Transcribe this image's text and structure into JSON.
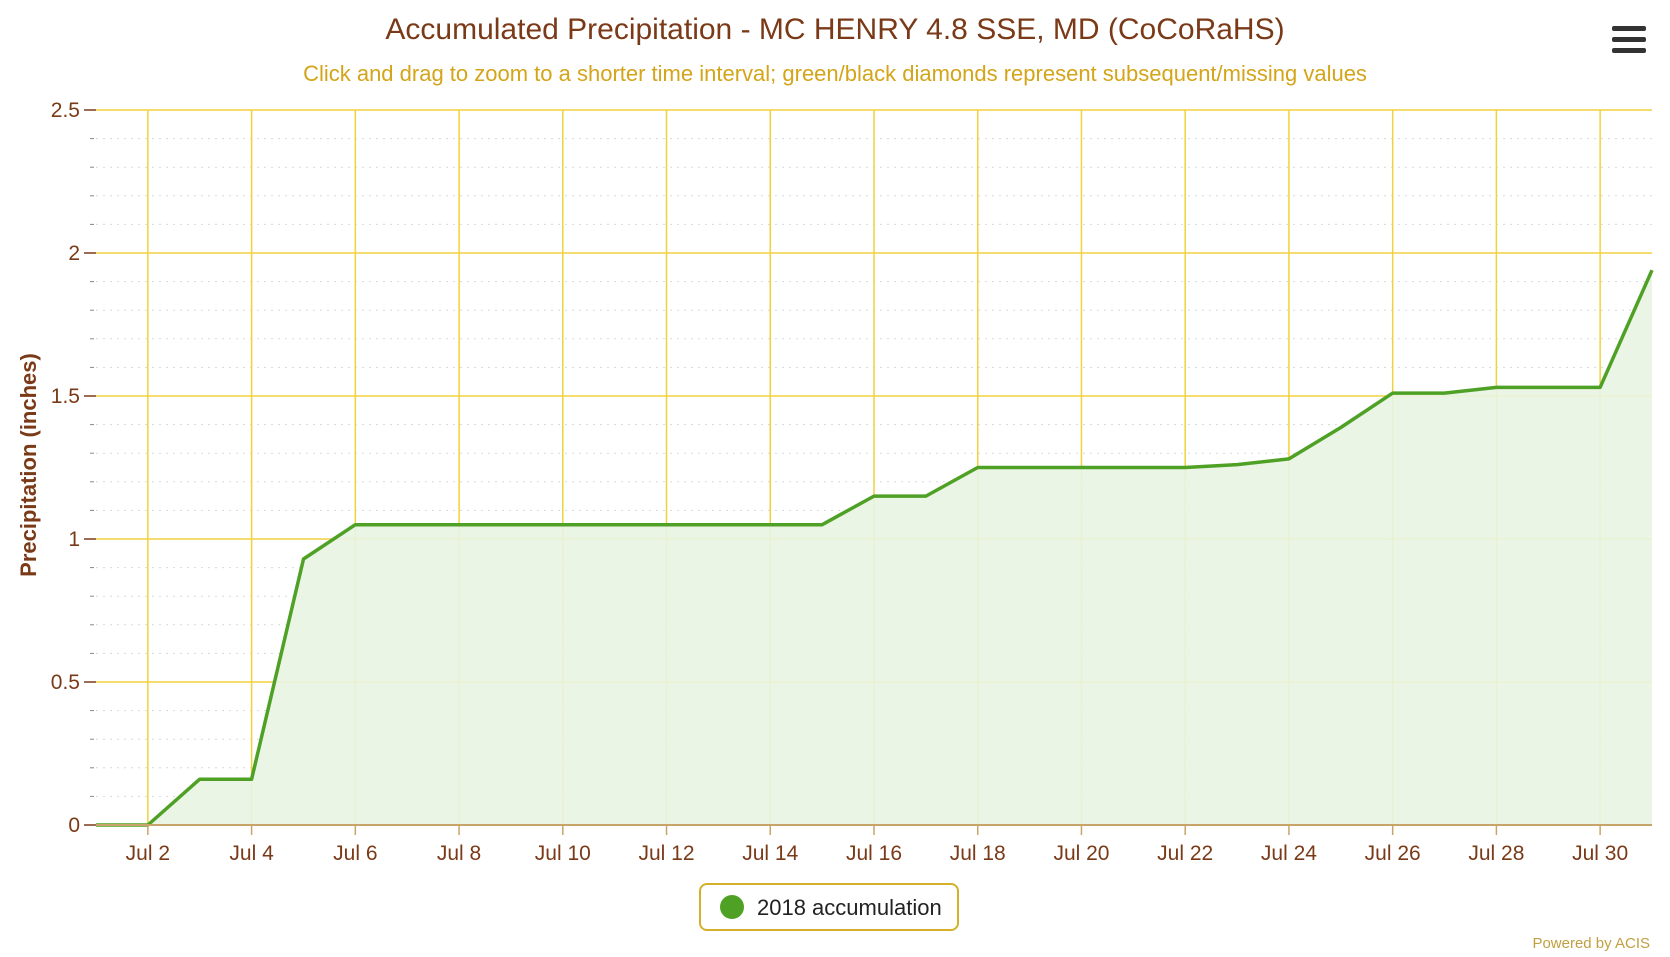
{
  "colors": {
    "title": "#7a3a18",
    "subtitle": "#d4a419",
    "grid_major": "#f0d23e",
    "grid_minor": "#d8d8d8",
    "series_line": "#4fa126",
    "series_fill": "#e9f4e2",
    "axis_line": "#c9a46a",
    "legend_border": "#d4b02b"
  },
  "menu": {
    "icon": "hamburger-menu-icon"
  },
  "credits": "Powered by ACIS",
  "chart_data": {
    "type": "area",
    "title": "Accumulated Precipitation - MC HENRY 4.8 SSE, MD (CoCoRaHS)",
    "subtitle": "Click and drag to zoom to a shorter time interval; green/black diamonds represent subsequent/missing values",
    "xlabel": "",
    "ylabel": "Precipitation (inches)",
    "ylim": [
      0,
      2.5
    ],
    "yticks": [
      "0",
      "0.5",
      "1",
      "1.5",
      "2",
      "2.5"
    ],
    "xlim": [
      "2018-07-01",
      "2018-07-31"
    ],
    "xticks": [
      {
        "date": "2018-07-02",
        "label": "Jul 2"
      },
      {
        "date": "2018-07-04",
        "label": "Jul 4"
      },
      {
        "date": "2018-07-06",
        "label": "Jul 6"
      },
      {
        "date": "2018-07-08",
        "label": "Jul 8"
      },
      {
        "date": "2018-07-10",
        "label": "Jul 10"
      },
      {
        "date": "2018-07-12",
        "label": "Jul 12"
      },
      {
        "date": "2018-07-14",
        "label": "Jul 14"
      },
      {
        "date": "2018-07-16",
        "label": "Jul 16"
      },
      {
        "date": "2018-07-18",
        "label": "Jul 18"
      },
      {
        "date": "2018-07-20",
        "label": "Jul 20"
      },
      {
        "date": "2018-07-22",
        "label": "Jul 22"
      },
      {
        "date": "2018-07-24",
        "label": "Jul 24"
      },
      {
        "date": "2018-07-26",
        "label": "Jul 26"
      },
      {
        "date": "2018-07-28",
        "label": "Jul 28"
      },
      {
        "date": "2018-07-30",
        "label": "Jul 30"
      }
    ],
    "grid": true,
    "legend_position": "bottom-center",
    "series": [
      {
        "name": "2018 accumulation",
        "color": "#4fa126",
        "x": [
          "2018-07-01",
          "2018-07-02",
          "2018-07-03",
          "2018-07-04",
          "2018-07-05",
          "2018-07-06",
          "2018-07-07",
          "2018-07-08",
          "2018-07-09",
          "2018-07-10",
          "2018-07-11",
          "2018-07-12",
          "2018-07-13",
          "2018-07-14",
          "2018-07-15",
          "2018-07-16",
          "2018-07-17",
          "2018-07-18",
          "2018-07-19",
          "2018-07-20",
          "2018-07-21",
          "2018-07-22",
          "2018-07-23",
          "2018-07-24",
          "2018-07-25",
          "2018-07-26",
          "2018-07-27",
          "2018-07-28",
          "2018-07-29",
          "2018-07-30",
          "2018-07-31"
        ],
        "values": [
          0,
          0,
          0.16,
          0.16,
          0.93,
          1.05,
          1.05,
          1.05,
          1.05,
          1.05,
          1.05,
          1.05,
          1.05,
          1.05,
          1.05,
          1.15,
          1.15,
          1.25,
          1.25,
          1.25,
          1.25,
          1.25,
          1.26,
          1.28,
          1.39,
          1.51,
          1.51,
          1.53,
          1.53,
          1.53,
          1.94
        ]
      }
    ]
  }
}
